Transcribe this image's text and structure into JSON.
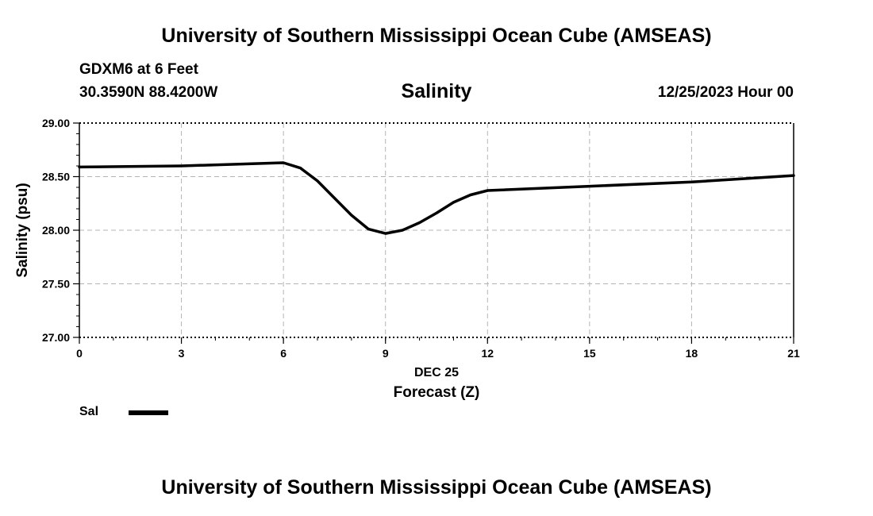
{
  "header": {
    "title": "University of Southern Mississippi Ocean Cube (AMSEAS)",
    "station": "GDXM6 at 6 Feet",
    "coords": "30.3590N  88.4200W",
    "date": "12/25/2023 Hour 00"
  },
  "footer": {
    "title": "University of Southern Mississippi Ocean Cube (AMSEAS)"
  },
  "chart_data": {
    "type": "line",
    "title": "Salinity",
    "xlabel": "Forecast (Z)",
    "xlabel_date": "DEC 25",
    "ylabel": "Salinity (psu)",
    "xlim": [
      0,
      21
    ],
    "ylim": [
      27.0,
      29.0
    ],
    "xticks": [
      0,
      3,
      6,
      9,
      12,
      15,
      18,
      21
    ],
    "xtick_labels": [
      "0",
      "3",
      "6",
      "9",
      "12",
      "15",
      "18",
      "21"
    ],
    "yticks": [
      27.0,
      27.5,
      28.0,
      28.5,
      29.0
    ],
    "ytick_labels": [
      "27.00",
      "27.50",
      "28.00",
      "28.50",
      "29.00"
    ],
    "grid": true,
    "legend": "bottom-left",
    "series": [
      {
        "name": "Sal",
        "color": "#000000",
        "x": [
          0,
          3,
          6,
          6.5,
          7,
          7.5,
          8,
          8.5,
          9,
          9.5,
          10,
          10.5,
          11,
          11.5,
          12,
          15,
          18,
          21
        ],
        "values": [
          28.59,
          28.6,
          28.63,
          28.58,
          28.46,
          28.3,
          28.14,
          28.01,
          27.97,
          28.0,
          28.07,
          28.16,
          28.26,
          28.33,
          28.37,
          28.41,
          28.45,
          28.51
        ]
      }
    ]
  }
}
